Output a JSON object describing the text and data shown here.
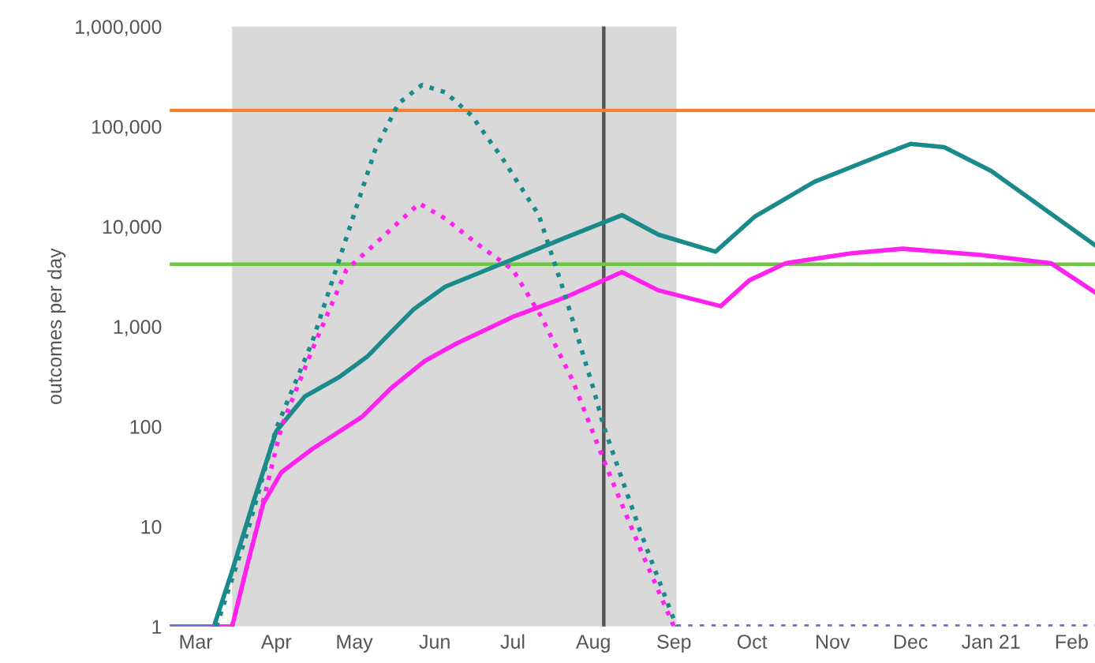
{
  "chart_data": {
    "type": "line",
    "ylabel": "outcomes per day",
    "log": "y",
    "grid": false,
    "legend": false,
    "xlim": [
      "2020-02-20",
      "2021-02-10"
    ],
    "ylim": [
      1,
      1000000
    ],
    "xticks": [
      {
        "value": "2020-03-01",
        "label": "Mar"
      },
      {
        "value": "2020-04-01",
        "label": "Apr"
      },
      {
        "value": "2020-05-01",
        "label": "May"
      },
      {
        "value": "2020-06-01",
        "label": "Jun"
      },
      {
        "value": "2020-07-01",
        "label": "Jul"
      },
      {
        "value": "2020-08-01",
        "label": "Aug"
      },
      {
        "value": "2020-09-01",
        "label": "Sep"
      },
      {
        "value": "2020-10-01",
        "label": "Oct"
      },
      {
        "value": "2020-11-01",
        "label": "Nov"
      },
      {
        "value": "2020-12-01",
        "label": "Dec"
      },
      {
        "value": "2021-01-01",
        "label": "Jan 21"
      },
      {
        "value": "2021-02-01",
        "label": "Feb"
      }
    ],
    "yticks": [
      1,
      10,
      100,
      {
        "value": 1000,
        "label": "1,000"
      },
      {
        "value": 10000,
        "label": "10,000"
      },
      {
        "value": 100000,
        "label": "100,000"
      },
      {
        "value": 1000000,
        "label": "1,000,000"
      }
    ],
    "bands": [
      {
        "axis": "x",
        "from": "2020-03-15",
        "to": "2020-09-02",
        "color": "#d9d9d9"
      }
    ],
    "ref_lines": [
      {
        "axis": "x",
        "value": "2020-08-05",
        "color": "#555555",
        "line_style": "solid"
      },
      {
        "axis": "y",
        "value": 145000,
        "color": "#f5822a",
        "line_style": "solid"
      },
      {
        "axis": "y",
        "value": 4200,
        "color": "#6cc644",
        "line_style": "solid"
      }
    ],
    "series": [
      {
        "color": "#6b6bd6",
        "line_style": "solid",
        "x": [
          "2020-02-20",
          "2020-03-08"
        ],
        "values": [
          1,
          1
        ]
      },
      {
        "color": "#6b6bd6",
        "line_style": "dotted",
        "x": [
          "2020-09-02",
          "2021-02-10"
        ],
        "values": [
          1,
          1
        ]
      },
      {
        "color": "#1b8a8a",
        "line_style": "solid",
        "x": [
          "2020-03-08",
          "2020-03-15",
          "2020-03-23",
          "2020-04-01",
          "2020-04-12",
          "2020-04-25",
          "2020-05-06",
          "2020-05-15",
          "2020-05-24",
          "2020-06-05",
          "2020-07-01",
          "2020-07-21",
          "2020-08-12",
          "2020-08-26",
          "2020-09-17",
          "2020-10-02",
          "2020-10-25",
          "2020-11-20",
          "2020-12-01",
          "2020-12-14",
          "2021-01-01",
          "2021-01-20",
          "2021-02-10"
        ],
        "values": [
          1,
          3.6,
          17,
          90,
          200,
          310,
          500,
          870,
          1500,
          2500,
          4700,
          7700,
          13000,
          8300,
          5600,
          12500,
          28000,
          52000,
          67000,
          62000,
          36000,
          16000,
          6500
        ]
      },
      {
        "color": "#ff22ee",
        "line_style": "solid",
        "x": [
          "2020-03-08",
          "2020-03-15",
          "2020-03-21",
          "2020-03-27",
          "2020-04-03",
          "2020-04-15",
          "2020-05-04",
          "2020-05-15",
          "2020-05-28",
          "2020-06-09",
          "2020-07-01",
          "2020-07-21",
          "2020-08-12",
          "2020-08-26",
          "2020-09-19",
          "2020-09-30",
          "2020-10-14",
          "2020-11-08",
          "2020-11-28",
          "2020-12-28",
          "2021-01-24",
          "2021-02-10"
        ],
        "values": [
          1,
          1,
          4.3,
          17,
          35,
          60,
          125,
          240,
          450,
          670,
          1250,
          1950,
          3500,
          2300,
          1600,
          2900,
          4300,
          5400,
          6000,
          5200,
          4300,
          2200
        ]
      },
      {
        "color": "#1b8a8a",
        "line_style": "dotted",
        "x": [
          "2020-03-09",
          "2020-03-21",
          "2020-04-01",
          "2020-04-15",
          "2020-04-25",
          "2020-05-09",
          "2020-05-18",
          "2020-05-27",
          "2020-06-05",
          "2020-06-15",
          "2020-06-27",
          "2020-07-11",
          "2020-07-21",
          "2020-08-01",
          "2020-08-05",
          "2020-08-19",
          "2020-09-02"
        ],
        "values": [
          1,
          9,
          96,
          720,
          4500,
          58000,
          170000,
          260000,
          220000,
          130000,
          48000,
          13000,
          2100,
          240,
          100,
          9,
          1
        ]
      },
      {
        "color": "#ff22ee",
        "line_style": "dotted",
        "x": [
          "2020-03-15",
          "2020-03-25",
          "2020-04-03",
          "2020-04-15",
          "2020-04-28",
          "2020-05-06",
          "2020-05-18",
          "2020-05-26",
          "2020-06-05",
          "2020-06-18",
          "2020-07-01",
          "2020-07-12",
          "2020-07-24",
          "2020-08-05",
          "2020-08-19",
          "2020-09-01"
        ],
        "values": [
          1,
          11,
          100,
          600,
          3700,
          5700,
          11000,
          17000,
          12000,
          6500,
          3700,
          1250,
          290,
          46,
          6,
          1
        ]
      }
    ]
  }
}
